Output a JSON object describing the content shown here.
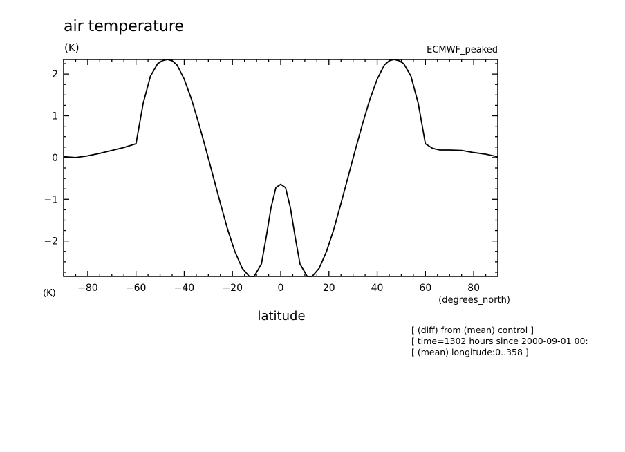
{
  "chart_data": {
    "type": "line",
    "title": "air temperature",
    "ylabel": "(K)",
    "xunit_label": "(K)",
    "xlabel": "latitude",
    "xunit": "(degrees_north)",
    "dataset": "ECMWF_peaked",
    "xlim": [
      -90,
      90
    ],
    "ylim": [
      -2.85,
      2.35
    ],
    "xticks": [
      -80,
      -60,
      -40,
      -20,
      0,
      20,
      40,
      60,
      80
    ],
    "yticks": [
      -2,
      -1,
      0,
      1,
      2
    ],
    "xtick_labels": [
      "−80",
      "−60",
      "−40",
      "−20",
      "0",
      "20",
      "40",
      "60",
      "80"
    ],
    "ytick_labels": [
      "−2",
      "−1",
      "0",
      "1",
      "2"
    ],
    "grid": false,
    "legend": "none",
    "series": [
      {
        "x": [
          -90,
          -85,
          -80,
          -75,
          -70,
          -65,
          -60,
          -57,
          -54,
          -51,
          -49,
          -47,
          -45,
          -43,
          -40,
          -37,
          -34,
          -31,
          -28,
          -25,
          -22,
          -19,
          -16,
          -13,
          -11,
          -8,
          -6,
          -4,
          -2,
          0,
          2,
          4,
          6,
          8,
          11,
          13,
          16,
          19,
          22,
          25,
          28,
          31,
          34,
          37,
          40,
          43,
          45,
          47,
          49,
          51,
          54,
          57,
          60,
          63,
          66,
          70,
          75,
          80,
          85,
          90
        ],
        "y": [
          0.02,
          0.0,
          0.04,
          0.1,
          0.17,
          0.24,
          0.33,
          1.3,
          1.95,
          2.25,
          2.32,
          2.35,
          2.32,
          2.22,
          1.88,
          1.4,
          0.82,
          0.2,
          -0.45,
          -1.1,
          -1.72,
          -2.25,
          -2.65,
          -2.85,
          -2.85,
          -2.55,
          -1.9,
          -1.2,
          -0.72,
          -0.64,
          -0.72,
          -1.2,
          -1.9,
          -2.55,
          -2.85,
          -2.85,
          -2.65,
          -2.25,
          -1.72,
          -1.1,
          -0.45,
          0.2,
          0.82,
          1.4,
          1.88,
          2.22,
          2.32,
          2.35,
          2.32,
          2.25,
          1.95,
          1.3,
          0.33,
          0.22,
          0.18,
          0.18,
          0.17,
          0.12,
          0.08,
          0.02
        ]
      }
    ]
  },
  "footnotes": [
    "[ (diff) from (mean) control ]",
    "[ time=1302 hours since 2000-09-01 00:",
    "[ (mean) longitude:0..358 ]"
  ]
}
